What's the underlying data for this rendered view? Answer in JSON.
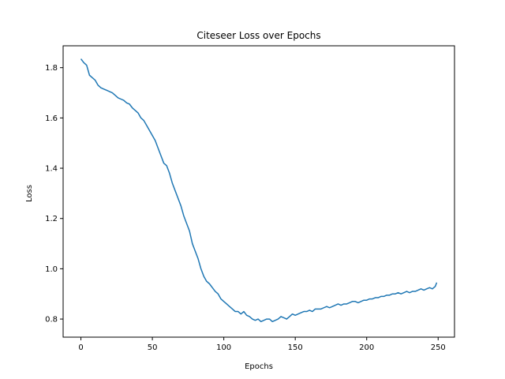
{
  "chart_data": {
    "type": "line",
    "title": "Citeseer Loss over Epochs",
    "xlabel": "Epochs",
    "ylabel": "Loss",
    "xlim": [
      -12.45,
      261.45
    ],
    "ylim": [
      0.728,
      1.887
    ],
    "xticks": [
      0,
      50,
      100,
      150,
      200,
      250
    ],
    "yticks": [
      0.8,
      1.0,
      1.2,
      1.4,
      1.6,
      1.8
    ],
    "ytick_labels": [
      "0.8",
      "1.0",
      "1.2",
      "1.4",
      "1.6",
      "1.8"
    ],
    "grid": false,
    "line_color": "#1f77b4",
    "series": [
      {
        "x": [
          0,
          2,
          4,
          6,
          8,
          10,
          12,
          14,
          16,
          18,
          20,
          22,
          24,
          26,
          28,
          30,
          32,
          34,
          36,
          38,
          40,
          42,
          44,
          46,
          48,
          50,
          52,
          54,
          56,
          58,
          60,
          62,
          64,
          66,
          68,
          70,
          72,
          74,
          76,
          78,
          80,
          82,
          84,
          86,
          88,
          90,
          92,
          94,
          96,
          98,
          100,
          102,
          104,
          106,
          108,
          110,
          112,
          114,
          116,
          118,
          120,
          122,
          124,
          126,
          128,
          130,
          132,
          134,
          136,
          138,
          140,
          142,
          144,
          146,
          148,
          150,
          152,
          154,
          156,
          158,
          160,
          162,
          164,
          166,
          168,
          170,
          172,
          174,
          176,
          178,
          180,
          182,
          184,
          186,
          188,
          190,
          192,
          194,
          196,
          198,
          200,
          202,
          204,
          206,
          208,
          210,
          212,
          214,
          216,
          218,
          220,
          222,
          224,
          226,
          228,
          230,
          232,
          234,
          236,
          238,
          240,
          242,
          244,
          246,
          248,
          249
        ],
        "y": [
          1.835,
          1.82,
          1.81,
          1.77,
          1.76,
          1.75,
          1.73,
          1.72,
          1.715,
          1.71,
          1.705,
          1.7,
          1.69,
          1.68,
          1.675,
          1.67,
          1.66,
          1.655,
          1.64,
          1.63,
          1.62,
          1.6,
          1.59,
          1.57,
          1.55,
          1.53,
          1.51,
          1.48,
          1.45,
          1.42,
          1.41,
          1.38,
          1.34,
          1.31,
          1.28,
          1.25,
          1.21,
          1.18,
          1.15,
          1.1,
          1.07,
          1.04,
          1.0,
          0.97,
          0.95,
          0.94,
          0.925,
          0.91,
          0.9,
          0.88,
          0.87,
          0.86,
          0.85,
          0.84,
          0.83,
          0.83,
          0.82,
          0.83,
          0.815,
          0.81,
          0.8,
          0.795,
          0.8,
          0.79,
          0.795,
          0.8,
          0.8,
          0.79,
          0.795,
          0.8,
          0.81,
          0.805,
          0.8,
          0.81,
          0.82,
          0.815,
          0.82,
          0.825,
          0.83,
          0.83,
          0.835,
          0.83,
          0.84,
          0.84,
          0.84,
          0.845,
          0.85,
          0.845,
          0.85,
          0.855,
          0.86,
          0.855,
          0.86,
          0.86,
          0.865,
          0.87,
          0.87,
          0.865,
          0.87,
          0.875,
          0.875,
          0.88,
          0.88,
          0.885,
          0.885,
          0.89,
          0.89,
          0.895,
          0.895,
          0.9,
          0.9,
          0.905,
          0.9,
          0.905,
          0.91,
          0.905,
          0.91,
          0.91,
          0.915,
          0.92,
          0.915,
          0.92,
          0.925,
          0.92,
          0.93,
          0.945
        ]
      }
    ]
  }
}
